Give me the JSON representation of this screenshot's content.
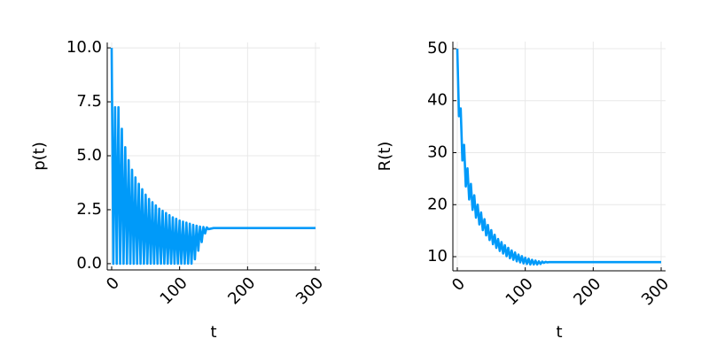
{
  "chart_data": [
    {
      "type": "line",
      "xlabel": "t",
      "ylabel": "p(t)",
      "xlim": [
        -6.5,
        306.5
      ],
      "ylim": [
        -0.29,
        10.25
      ],
      "xticks": [
        0,
        100,
        200,
        300
      ],
      "yticks": [
        {
          "value": 0,
          "label": "0.0"
        },
        {
          "value": 2.5,
          "label": "2.5"
        },
        {
          "value": 5,
          "label": "5.0"
        },
        {
          "value": 7.5,
          "label": "7.5"
        },
        {
          "value": 10,
          "label": "10.0"
        }
      ],
      "grid": true,
      "x": [
        0,
        2.5,
        5,
        7.5,
        10,
        12.5,
        15,
        17.5,
        20,
        22.5,
        25,
        27.5,
        30,
        32.5,
        35,
        37.5,
        40,
        42.5,
        45,
        47.5,
        50,
        52.5,
        55,
        57.5,
        60,
        62.5,
        65,
        67.5,
        70,
        72.5,
        75,
        77.5,
        80,
        82.5,
        85,
        87.5,
        90,
        92.5,
        95,
        97.5,
        100,
        102.5,
        105,
        107.5,
        110,
        112.5,
        115,
        117.5,
        120,
        122.5,
        125,
        127.5,
        130,
        132.5,
        135,
        137.5,
        140,
        142.5,
        150,
        200,
        300
      ],
      "series": [
        {
          "color": "#009af9",
          "values": [
            10,
            0,
            7.25,
            0,
            7.25,
            0,
            6.25,
            0,
            5.4,
            0,
            4.8,
            0,
            4.35,
            0,
            4.0,
            0,
            3.7,
            0,
            3.45,
            0,
            3.2,
            0,
            3.0,
            0,
            2.85,
            0,
            2.7,
            0,
            2.55,
            0,
            2.45,
            0,
            2.35,
            0,
            2.25,
            0,
            2.15,
            0,
            2.08,
            0,
            2.0,
            0,
            1.95,
            0,
            1.9,
            0,
            1.85,
            0,
            1.8,
            0.2,
            1.76,
            0.6,
            1.72,
            1.0,
            1.7,
            1.4,
            1.68,
            1.6,
            1.65,
            1.65,
            1.65
          ]
        }
      ]
    },
    {
      "type": "line",
      "xlabel": "t",
      "ylabel": "R(t)",
      "xlim": [
        -6.5,
        306.5
      ],
      "ylim": [
        7.28,
        51.36
      ],
      "xticks": [
        0,
        100,
        200,
        300
      ],
      "yticks": [
        10,
        20,
        30,
        40,
        50
      ],
      "grid": true,
      "x": [
        0,
        2.5,
        5,
        7.5,
        10,
        12.5,
        15,
        17.5,
        20,
        22.5,
        25,
        27.5,
        30,
        32.5,
        35,
        37.5,
        40,
        42.5,
        45,
        47.5,
        50,
        52.5,
        55,
        57.5,
        60,
        62.5,
        65,
        67.5,
        70,
        72.5,
        75,
        77.5,
        80,
        82.5,
        85,
        87.5,
        90,
        92.5,
        95,
        97.5,
        100,
        102.5,
        105,
        107.5,
        110,
        112.5,
        115,
        117.5,
        120,
        122.5,
        125,
        127.5,
        130,
        132.5,
        135,
        137.5,
        140,
        142.5,
        150,
        200,
        300
      ],
      "series": [
        {
          "color": "#009af9",
          "values": [
            50,
            37,
            38.5,
            28.5,
            31.5,
            23.5,
            27,
            21,
            24,
            19,
            21.8,
            17.5,
            20,
            16.2,
            18.5,
            15.1,
            17.2,
            14.1,
            16.1,
            13.2,
            15.1,
            12.4,
            14.2,
            11.7,
            13.4,
            11.1,
            12.8,
            10.6,
            12.2,
            10.1,
            11.7,
            9.7,
            11.2,
            9.4,
            10.8,
            9.1,
            10.4,
            8.9,
            10.1,
            8.7,
            9.8,
            8.6,
            9.6,
            8.5,
            9.4,
            8.5,
            9.25,
            8.5,
            9.1,
            8.6,
            9.05,
            8.8,
            9.0,
            8.9,
            8.95,
            8.95,
            8.95,
            8.95,
            8.95,
            8.95,
            8.95
          ]
        }
      ]
    }
  ]
}
